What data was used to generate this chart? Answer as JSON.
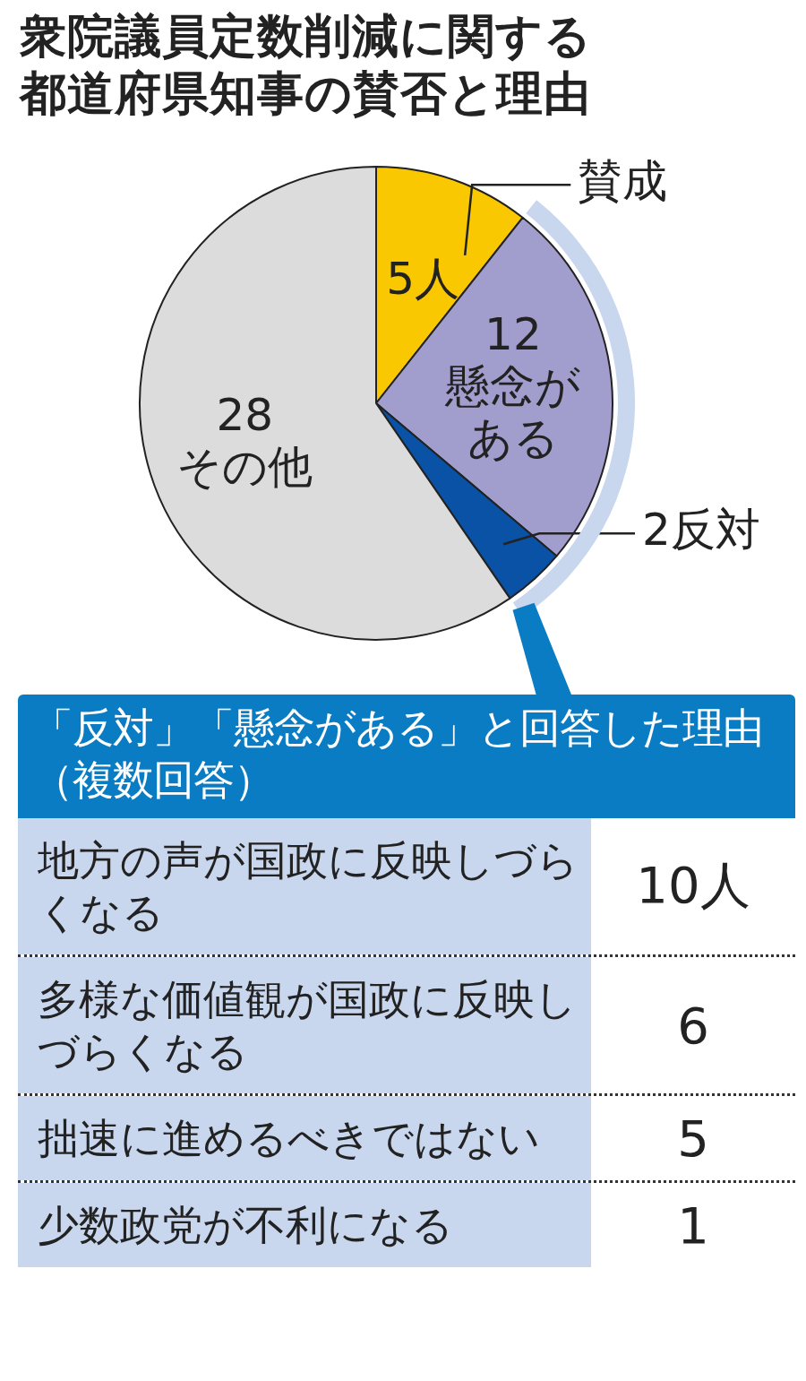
{
  "chart_data": [
    {
      "type": "pie",
      "title": "衆院議員定数削減に関する都道府県知事の賛否と理由",
      "categories": [
        "賛成",
        "懸念がある",
        "反対",
        "その他"
      ],
      "values": [
        5,
        12,
        2,
        28
      ],
      "value_labels": [
        "5人",
        "12",
        "2",
        "28"
      ],
      "colors": [
        "#f9c800",
        "#a19dcc",
        "#0a52a5",
        "#dcdcdc"
      ]
    },
    {
      "type": "other",
      "title": "「反対」「懸念がある」と回答した理由（複数回答）",
      "categories": [
        "地方の声が国政に反映しづらくなる",
        "多様な価値観が国政に反映しづらくなる",
        "拙速に進めるべきではない",
        "少数政党が不利になる"
      ],
      "value_labels": [
        "10人",
        "6",
        "5",
        "1"
      ]
    }
  ]
}
